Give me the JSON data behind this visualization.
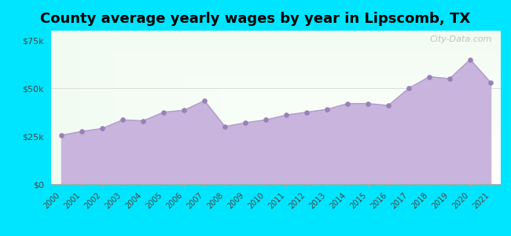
{
  "title": "County average yearly wages by year in Lipscomb, TX",
  "years": [
    2000,
    2001,
    2002,
    2003,
    2004,
    2005,
    2006,
    2007,
    2008,
    2009,
    2010,
    2011,
    2012,
    2013,
    2014,
    2015,
    2016,
    2017,
    2018,
    2019,
    2020,
    2021
  ],
  "values": [
    25500,
    27500,
    29000,
    33500,
    33000,
    37500,
    38500,
    43500,
    30000,
    32000,
    33500,
    36000,
    37500,
    39000,
    42000,
    42000,
    41000,
    50000,
    56000,
    55000,
    65000,
    53000
  ],
  "ylim": [
    0,
    80000
  ],
  "yticks": [
    0,
    25000,
    50000,
    75000
  ],
  "ytick_labels": [
    "$0",
    "$25k",
    "$50k",
    "$75k"
  ],
  "line_color": "#b09ccc",
  "fill_color": "#c8b4dc",
  "marker_color": "#9880b8",
  "outer_bg": "#00e5ff",
  "plot_bg_top": "#d8f0d8",
  "plot_bg_bottom": "#f8fff8",
  "title_fontsize": 13,
  "watermark_text": "City-Data.com"
}
